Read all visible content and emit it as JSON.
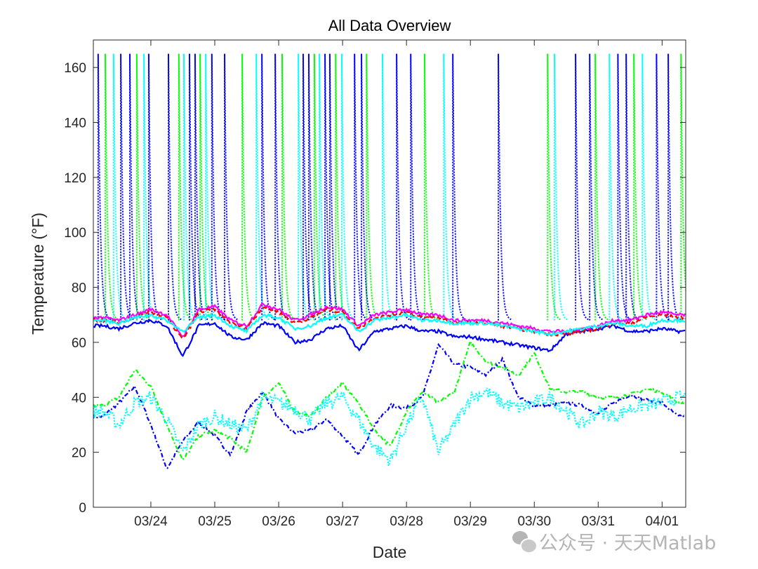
{
  "chart_data": {
    "type": "line",
    "title": "All Data Overview",
    "xlabel": "Date",
    "ylabel": "Temperature (°F)",
    "xlim": [
      "03/23 02:24",
      "04/01 08:52"
    ],
    "ylim": [
      0,
      170
    ],
    "xticks": [
      "03/24",
      "03/25",
      "03/26",
      "03/27",
      "03/28",
      "03/29",
      "03/30",
      "03/31",
      "04/01"
    ],
    "yticks": [
      0,
      20,
      40,
      60,
      80,
      100,
      120,
      140,
      160
    ],
    "grid": false,
    "x": [
      "03/23 06:00",
      "03/23 12:00",
      "03/23 18:00",
      "03/24 00:00",
      "03/24 06:00",
      "03/24 12:00",
      "03/24 18:00",
      "03/25 00:00",
      "03/25 06:00",
      "03/25 12:00",
      "03/25 18:00",
      "03/26 00:00",
      "03/26 06:00",
      "03/26 12:00",
      "03/26 18:00",
      "03/27 00:00",
      "03/27 06:00",
      "03/27 12:00",
      "03/27 18:00",
      "03/28 00:00",
      "03/28 06:00",
      "03/28 12:00",
      "03/28 18:00",
      "03/29 00:00",
      "03/29 06:00",
      "03/29 12:00",
      "03/29 18:00",
      "03/30 00:00",
      "03/30 06:00",
      "03/30 12:00",
      "03/30 18:00",
      "03/31 00:00",
      "03/31 06:00",
      "03/31 12:00",
      "03/31 18:00",
      "04/01 00:00",
      "04/01 06:00"
    ],
    "series": [
      {
        "color": "#0000ff",
        "style": "dashdot",
        "values": [
          33,
          38,
          44,
          30,
          14,
          24,
          31,
          26,
          19,
          35,
          42,
          32,
          27,
          28,
          32,
          26,
          19,
          30,
          37,
          36,
          40,
          59,
          52,
          51,
          48,
          54,
          40,
          37,
          37,
          38,
          37,
          34,
          38,
          41,
          39,
          38,
          33
        ]
      },
      {
        "color": "#00ff00",
        "style": "dashdot",
        "values": [
          37,
          40,
          50,
          44,
          30,
          17,
          26,
          28,
          25,
          20,
          40,
          45,
          35,
          33,
          40,
          45,
          38,
          28,
          22,
          35,
          42,
          38,
          42,
          60,
          53,
          51,
          48,
          56,
          43,
          42,
          42,
          40,
          40,
          41,
          43,
          42,
          38
        ]
      },
      {
        "color": "#00ffff",
        "style": "dotted",
        "values": [
          35,
          30,
          38,
          40,
          32,
          20,
          30,
          33,
          30,
          28,
          40,
          38,
          36,
          32,
          38,
          40,
          32,
          22,
          17,
          30,
          40,
          20,
          30,
          40,
          42,
          38,
          36,
          38,
          40,
          35,
          30,
          35,
          33,
          36,
          37,
          38,
          40
        ]
      },
      {
        "color": "#0000ff",
        "style": "solid",
        "values": [
          66,
          65,
          67,
          68,
          66,
          55,
          66,
          67,
          62,
          61,
          67,
          66,
          60,
          61,
          65,
          66,
          57,
          64,
          65,
          66,
          64,
          64,
          62,
          62,
          61,
          60,
          59,
          58,
          57,
          63,
          64,
          65,
          66,
          64,
          64,
          65,
          64
        ]
      },
      {
        "color": "#ff00ff",
        "style": "solid",
        "values": [
          69,
          68,
          70,
          72,
          70,
          62,
          72,
          73,
          68,
          66,
          74,
          72,
          68,
          70,
          73,
          72,
          66,
          70,
          71,
          72,
          70,
          70,
          68,
          68,
          68,
          67,
          66,
          65,
          64,
          64,
          65,
          66,
          68,
          68,
          70,
          71,
          70
        ]
      },
      {
        "color": "#ff0000",
        "style": "dashed",
        "values": [
          68,
          67,
          69,
          71,
          69,
          61,
          71,
          72,
          67,
          65,
          73,
          71,
          67,
          69,
          72,
          71,
          65,
          69,
          70,
          71,
          69,
          69,
          67,
          67,
          67,
          66,
          65,
          64,
          63,
          63,
          64,
          65,
          67,
          67,
          69,
          70,
          69
        ]
      },
      {
        "color": "#00ffff",
        "style": "solid",
        "values": [
          68,
          67,
          69,
          70,
          68,
          64,
          69,
          70,
          66,
          64,
          70,
          69,
          65,
          66,
          69,
          70,
          64,
          68,
          69,
          70,
          68,
          68,
          67,
          67,
          67,
          66,
          65,
          64,
          63,
          64,
          65,
          66,
          67,
          66,
          66,
          68,
          68
        ]
      }
    ],
    "spike_peak": 165,
    "spikes": [
      "03/23 04:12",
      "03/23 06:54",
      "03/23 10:00",
      "03/23 12:42",
      "03/23 16:06",
      "03/23 18:42",
      "03/23 21:24",
      "03/23 23:12",
      "03/24 06:36",
      "03/24 10:30",
      "03/24 12:24",
      "03/24 14:30",
      "03/24 16:36",
      "03/24 18:30",
      "03/24 20:36",
      "03/24 22:54",
      "03/25 03:42",
      "03/25 10:18",
      "03/25 15:36",
      "03/25 17:42",
      "03/25 22:42",
      "03/26 01:18",
      "03/26 07:24",
      "03/26 09:12",
      "03/26 11:18",
      "03/26 13:24",
      "03/26 15:18",
      "03/26 17:24",
      "03/26 19:12",
      "03/26 21:24",
      "03/26 23:42",
      "03/27 04:30",
      "03/27 07:06",
      "03/27 09:00",
      "03/27 15:00",
      "03/27 20:18",
      "03/28 01:36",
      "03/28 06:48",
      "03/28 14:00",
      "03/28 17:24",
      "03/29 10:30",
      "03/30 05:00",
      "03/30 07:36",
      "03/30 15:30",
      "03/30 20:48",
      "03/30 22:54",
      "03/31 04:12",
      "03/31 07:24",
      "03/31 10:30",
      "03/31 13:24",
      "03/31 16:36",
      "03/31 21:54",
      "04/01 02:18",
      "04/01 07:06"
    ]
  },
  "watermark": {
    "text": "公众号 · 天天Matlab",
    "icon": "wechat-icon"
  }
}
